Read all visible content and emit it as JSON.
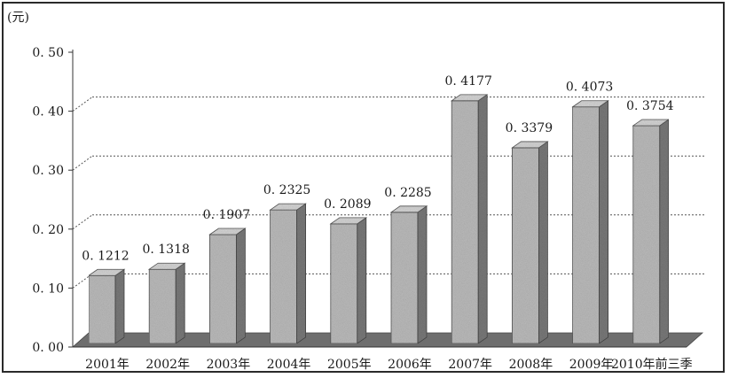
{
  "chart_data": {
    "type": "bar",
    "unit_label": "(元)",
    "categories": [
      "2001年",
      "2002年",
      "2003年",
      "2004年",
      "2005年",
      "2006年",
      "2007年",
      "2008年",
      "2009年",
      "2010年前三季"
    ],
    "values": [
      0.1212,
      0.1318,
      0.1907,
      0.2325,
      0.2089,
      0.2285,
      0.4177,
      0.3379,
      0.4073,
      0.3754
    ],
    "value_labels": [
      "0. 1212",
      "0. 1318",
      "0. 1907",
      "0. 2325",
      "0. 2089",
      "0. 2285",
      "0. 4177",
      "0. 3379",
      "0. 4073",
      "0. 3754"
    ],
    "y_ticks": [
      0.0,
      0.1,
      0.2,
      0.3,
      0.4,
      0.5
    ],
    "y_tick_labels": [
      "0. 00",
      "0. 10",
      "0. 20",
      "0. 30",
      "0. 40",
      "0. 50"
    ],
    "ylim": [
      0,
      0.5
    ],
    "grid": "dashed horizontal at 0.10, 0.20, 0.30, 0.40",
    "legend": "none",
    "style": "3d-bars",
    "colors": {
      "bar_front": "#bdbdbd",
      "bar_side": "#7a7a7a",
      "bar_top": "#d6d6d6",
      "floor": "#6e6e6e",
      "grid": "#555555"
    }
  }
}
